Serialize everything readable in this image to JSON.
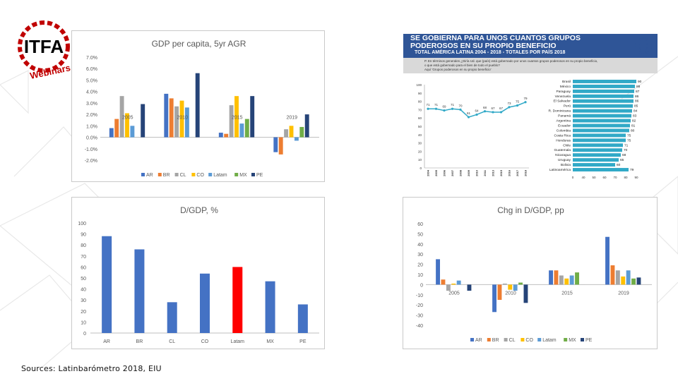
{
  "source_note": "Sources: Latinbarómetro 2018, EIU",
  "logo": {
    "text": "ITFA",
    "sub": "Webinars",
    "icon": "itfa-gear-logo"
  },
  "colors": {
    "AR": "#4472c4",
    "BR": "#ed7d31",
    "CL": "#a5a5a5",
    "CO": "#ffc000",
    "Latam": "#5b9bd5",
    "MX": "#70ad47",
    "PE": "#264478",
    "highlight": "#ff0000"
  },
  "latinobarometro": {
    "title_line1": "SE GOBIERNA PARA UNOS CUANTOS GRUPOS",
    "title_line2": "PODEROSOS EN SU PROPIO BENEFICIO",
    "subtitle": "TOTAL AMÉRICA LATINA 2004 - 2018 - TOTALES POR PAÍS 2018",
    "question_line1": "P. En términos generales ¿Diría Ud. que (país) está gobernado por unos cuantos grupos poderosos en su propio beneficio,",
    "question_line2": "o que está gobernado para el bien de todo el pueblo?",
    "question_line3": "Aquí 'Grupos poderosos en su propio beneficio'",
    "globe_icon": "globe-logo-icon"
  },
  "chart_data": [
    {
      "id": "gdp_growth",
      "type": "bar",
      "title": "GDP per capita, 5yr AGR",
      "categories": [
        "2005",
        "2010",
        "2015",
        "2019"
      ],
      "y_ticks": [
        "7.0%",
        "6.0%",
        "5.0%",
        "4.0%",
        "3.0%",
        "2.0%",
        "1.0%",
        "0.0%",
        "-1.0%",
        "-2.0%"
      ],
      "ylim": [
        -2,
        7
      ],
      "legend_position": "bottom",
      "series": [
        {
          "name": "AR",
          "values": [
            0.8,
            3.8,
            0.4,
            -1.3
          ]
        },
        {
          "name": "BR",
          "values": [
            1.6,
            3.4,
            0.3,
            -1.5
          ]
        },
        {
          "name": "CL",
          "values": [
            3.6,
            2.7,
            2.8,
            0.7
          ]
        },
        {
          "name": "CO",
          "values": [
            2.1,
            3.2,
            3.6,
            1.0
          ]
        },
        {
          "name": "Latam",
          "values": [
            1.0,
            2.6,
            1.2,
            -0.3
          ]
        },
        {
          "name": "MX",
          "values": [
            0.0,
            0.0,
            1.6,
            0.9
          ]
        },
        {
          "name": "PE",
          "values": [
            2.9,
            5.6,
            3.6,
            2.0
          ]
        }
      ]
    },
    {
      "id": "latinobarometro_line",
      "type": "line",
      "x": [
        "2004",
        "2005",
        "2006",
        "2007",
        "2008",
        "2009",
        "2010",
        "2011",
        "2013",
        "2015",
        "2016",
        "2017",
        "2018"
      ],
      "values": [
        71,
        71,
        69,
        71,
        70,
        61,
        64,
        68,
        67,
        67,
        73,
        75,
        79
      ],
      "data_labels": [
        "71",
        "71",
        "69",
        "71",
        "70",
        "61",
        "64",
        "68",
        "67",
        "67",
        "73",
        "75",
        "79"
      ],
      "y_ticks": [
        "100",
        "90",
        "80",
        "70",
        "60",
        "50",
        "40",
        "30",
        "20",
        "10",
        "0"
      ],
      "ylim": [
        0,
        100
      ]
    },
    {
      "id": "latinobarometro_countries",
      "type": "bar",
      "orientation": "horizontal",
      "categories": [
        "Brasil",
        "México",
        "Paraguay",
        "Venezuela",
        "El Salvador",
        "Perú",
        "R. Dominicana",
        "Panamá",
        "Argentina",
        "Ecuador",
        "Colombia",
        "Costa Rica",
        "Honduras",
        "Chile",
        "Guatemala",
        "Nicaragua",
        "Uruguay",
        "Bolivia",
        "Latinoamérica"
      ],
      "values": [
        90,
        88,
        87,
        86,
        86,
        85,
        84,
        83,
        82,
        81,
        80,
        75,
        75,
        71,
        70,
        68,
        65,
        60,
        79
      ],
      "data_labels": [
        "90",
        "88",
        "87",
        "86",
        "86",
        "85",
        "84",
        "83",
        "82",
        "81",
        "80",
        "75",
        "75",
        "71",
        "70",
        "68",
        "65",
        "60",
        "79"
      ],
      "x_ticks": [
        "0",
        "40",
        "50",
        "60",
        "70",
        "80",
        "90"
      ],
      "xlim": [
        0,
        90
      ]
    },
    {
      "id": "debt_gdp",
      "type": "bar",
      "title": "D/GDP, %",
      "categories": [
        "AR",
        "BR",
        "CL",
        "CO",
        "Latam",
        "MX",
        "PE"
      ],
      "values": [
        88,
        76,
        28,
        54,
        60,
        47,
        26
      ],
      "y_ticks": [
        "100",
        "90",
        "80",
        "70",
        "60",
        "50",
        "40",
        "30",
        "20",
        "10",
        "0"
      ],
      "ylim": [
        0,
        100
      ]
    },
    {
      "id": "debt_change",
      "type": "bar",
      "title": "Chg in D/GDP, pp",
      "categories": [
        "2005",
        "2010",
        "2015",
        "2019"
      ],
      "y_ticks": [
        "60",
        "50",
        "40",
        "30",
        "20",
        "10",
        "0",
        "-10",
        "-20",
        "-30",
        "-40"
      ],
      "ylim": [
        -40,
        60
      ],
      "legend_position": "bottom",
      "series": [
        {
          "name": "AR",
          "values": [
            25,
            -27,
            14,
            47
          ]
        },
        {
          "name": "BR",
          "values": [
            5,
            -15,
            14,
            19
          ]
        },
        {
          "name": "CL",
          "values": [
            -6,
            1,
            9,
            14
          ]
        },
        {
          "name": "CO",
          "values": [
            1,
            -5,
            6,
            8
          ]
        },
        {
          "name": "Latam",
          "values": [
            4,
            -6,
            9,
            14
          ]
        },
        {
          "name": "MX",
          "values": [
            0,
            2,
            12,
            6
          ]
        },
        {
          "name": "PE",
          "values": [
            -6,
            -18,
            0,
            7
          ]
        }
      ]
    }
  ]
}
